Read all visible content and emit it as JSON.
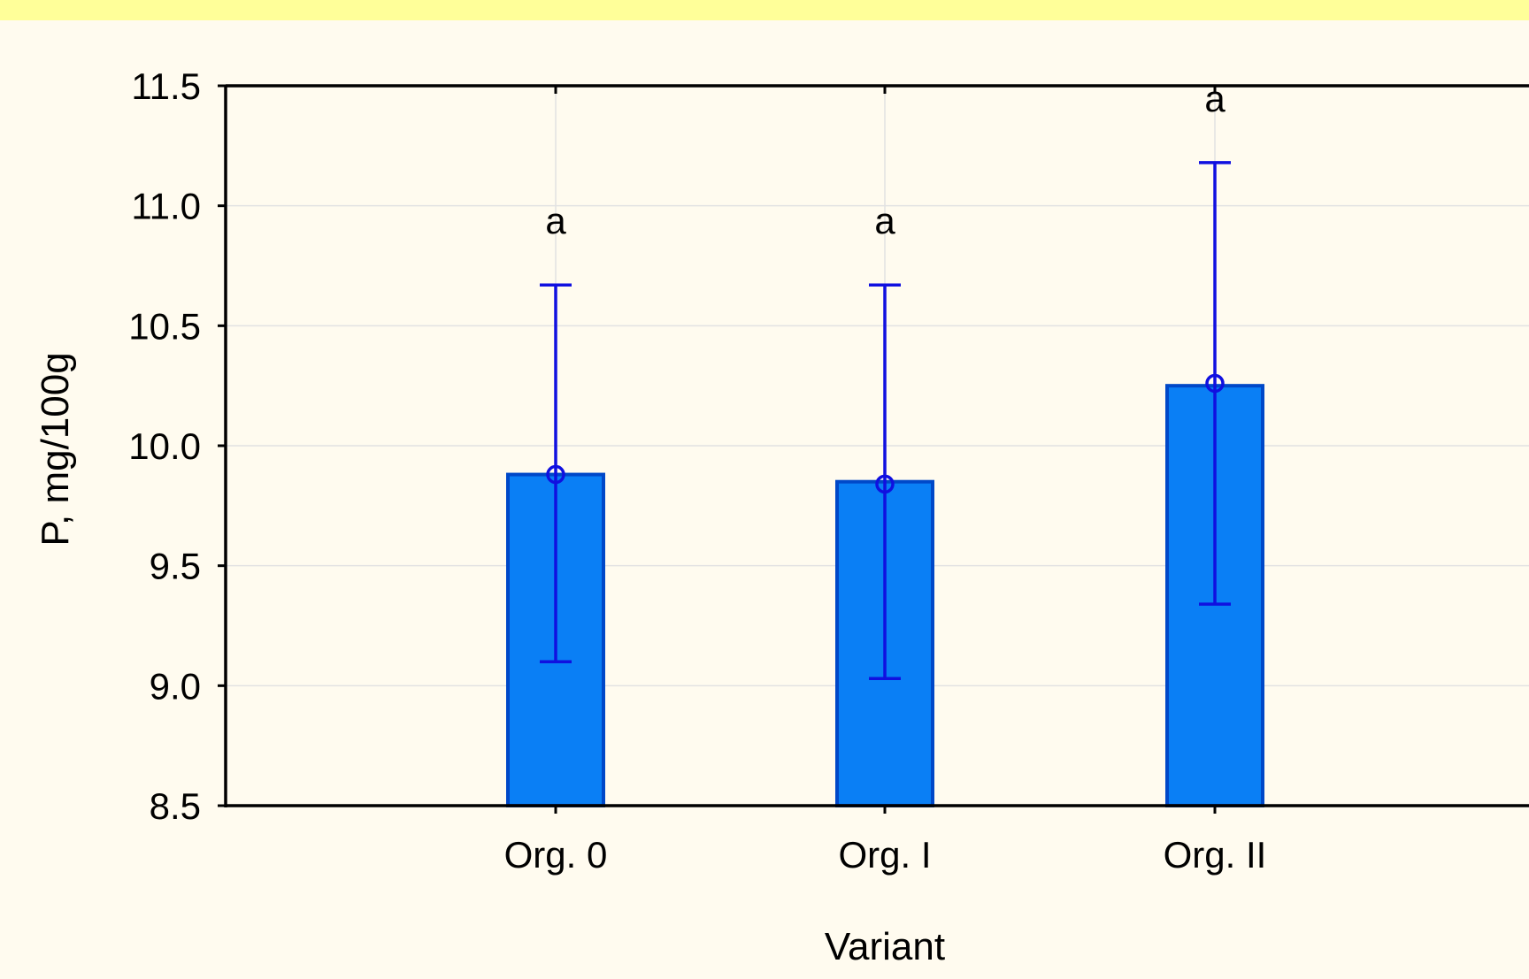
{
  "colors": {
    "background": "#fffbef",
    "top_band": "#ffff99",
    "bar_fill": "#0a7ff5",
    "bar_stroke": "#0048c8",
    "error_bar": "#1010e0",
    "grid": "#e2e2e2",
    "axis": "#000000"
  },
  "chart_data": {
    "type": "bar",
    "title": "",
    "xlabel": "Variant",
    "ylabel": "P, mg/100g",
    "ylim": [
      8.5,
      11.5
    ],
    "yticks": [
      "8.5",
      "9.0",
      "9.5",
      "10.0",
      "10.5",
      "11.0",
      "11.5"
    ],
    "grid": true,
    "legend": "none",
    "categories": [
      "Org. 0",
      "Org. I",
      "Org. II"
    ],
    "values": [
      9.88,
      9.85,
      10.25
    ],
    "means": [
      9.88,
      9.84,
      10.26
    ],
    "error_low": [
      9.1,
      9.03,
      9.34
    ],
    "error_high": [
      10.67,
      10.67,
      11.18
    ],
    "significance_labels": [
      "a",
      "a",
      "a"
    ]
  }
}
